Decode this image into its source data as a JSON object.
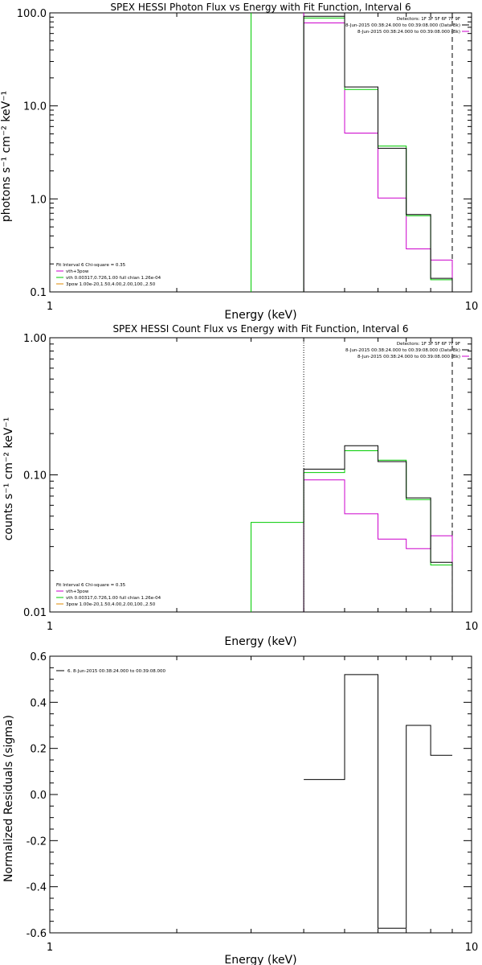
{
  "colors": {
    "black": "#000000",
    "magenta": "#cc00cc",
    "green": "#00cc00",
    "orange": "#e08a00"
  },
  "chart_data": [
    {
      "type": "line",
      "title": "SPEX HESSI Photon Flux vs Energy with Fit Function, Interval 6",
      "xlabel": "Energy (keV)",
      "ylabel": "photons s⁻¹ cm⁻² keV⁻¹",
      "xscale": "log",
      "yscale": "log",
      "xlim": [
        1,
        10
      ],
      "ylim": [
        0.1,
        100
      ],
      "x_ticklabels": [
        "1",
        "10"
      ],
      "y_ticklabels": [
        "0.1",
        "1.0",
        "10.0",
        "100.0"
      ],
      "legend_right": [
        "Detectors: 1F 3F 5F 6F 7F 9F",
        "8-Jun-2015 00:38:24.000 to 00:39:08.000 (Data-Bk)",
        "8-Jun-2015 00:38:24.000 to 00:39:08.000 (Bk)"
      ],
      "legend_left": [
        "Fit Interval 6   Chi-square = 0.35",
        "vth+3pow",
        "vth 0.00317,0.726,1.00  full chian 1.26e-04",
        "3pow 1.00e-20,1.50,4.00,2.00,100.,2.50"
      ],
      "vlines": [
        {
          "x": 3.0,
          "style": "solid",
          "color": "green"
        },
        {
          "x": 4.0,
          "style": "solid",
          "color": "magenta"
        },
        {
          "x": 9.0,
          "style": "dashed",
          "color": "black"
        }
      ],
      "edges": [
        4.0,
        5.0,
        6.0,
        7.0,
        8.0,
        9.0
      ],
      "series": [
        {
          "name": "Data-Bk",
          "color": "black",
          "values": [
            92,
            16,
            3.5,
            0.68,
            0.14
          ]
        },
        {
          "name": "vth+3pow",
          "color": "green",
          "values": [
            88,
            15,
            3.7,
            0.66,
            0.135
          ]
        },
        {
          "name": "Bk",
          "color": "magenta",
          "values": [
            78,
            5.1,
            1.02,
            0.29,
            0.22
          ]
        }
      ]
    },
    {
      "type": "line",
      "title": "SPEX HESSI Count Flux vs Energy with Fit Function, Interval 6",
      "xlabel": "Energy (keV)",
      "ylabel": "counts s⁻¹ cm⁻² keV⁻¹",
      "xscale": "log",
      "yscale": "log",
      "xlim": [
        1,
        10
      ],
      "ylim": [
        0.01,
        1
      ],
      "x_ticklabels": [
        "1",
        "10"
      ],
      "y_ticklabels": [
        "0.01",
        "0.10",
        "1.00"
      ],
      "legend_right": [
        "Detectors: 1F 3F 5F 6F 7F 9F",
        "8-Jun-2015 00:38:24.000 to 00:39:08.000 (Data-Bk)",
        "8-Jun-2015 00:38:24.000 to 00:39:08.000 (Bk)"
      ],
      "legend_left": [
        "Fit Interval 6   Chi-square = 0.35",
        "vth+3pow",
        "vth 0.00317,0.726,1.00  full chian 1.26e-04",
        "3pow 1.00e-20,1.50,4.00,2.00,100.,2.50"
      ],
      "vlines": [
        {
          "x": 4.0,
          "style": "dotted",
          "color": "black"
        },
        {
          "x": 9.0,
          "style": "dashed",
          "color": "black"
        }
      ],
      "edges": [
        3.0,
        4.0,
        5.0,
        6.0,
        7.0,
        8.0,
        9.0
      ],
      "series": [
        {
          "name": "Data-Bk",
          "color": "black",
          "values": [
            null,
            0.11,
            0.163,
            0.125,
            0.068,
            0.023
          ]
        },
        {
          "name": "vth+3pow",
          "color": "green",
          "values": [
            0.045,
            0.104,
            0.15,
            0.128,
            0.066,
            0.022
          ]
        },
        {
          "name": "Bk",
          "color": "magenta",
          "values": [
            null,
            0.092,
            0.052,
            0.034,
            0.029,
            0.036
          ]
        }
      ]
    },
    {
      "type": "line",
      "title": "",
      "xlabel": "Energy (keV)",
      "ylabel": "Normalized Residuals (sigma)",
      "xscale": "log",
      "yscale": "linear",
      "xlim": [
        1,
        10
      ],
      "ylim": [
        -0.6,
        0.6
      ],
      "x_ticklabels": [
        "1",
        "10"
      ],
      "y_ticklabels": [
        "-0.6",
        "-0.4",
        "-0.2",
        "0.0",
        "0.2",
        "0.4",
        "0.6"
      ],
      "legend_right": [],
      "legend_left": [
        "6. 8-Jun-2015 00:38:24.000 to 00:39:08.000"
      ],
      "vlines": [],
      "edges": [
        4.0,
        5.0,
        6.0,
        7.0,
        8.0,
        9.0
      ],
      "series": [
        {
          "name": "",
          "color": "black",
          "values": [
            0.065,
            0.52,
            -0.58,
            0.3,
            0.17
          ]
        }
      ]
    }
  ]
}
